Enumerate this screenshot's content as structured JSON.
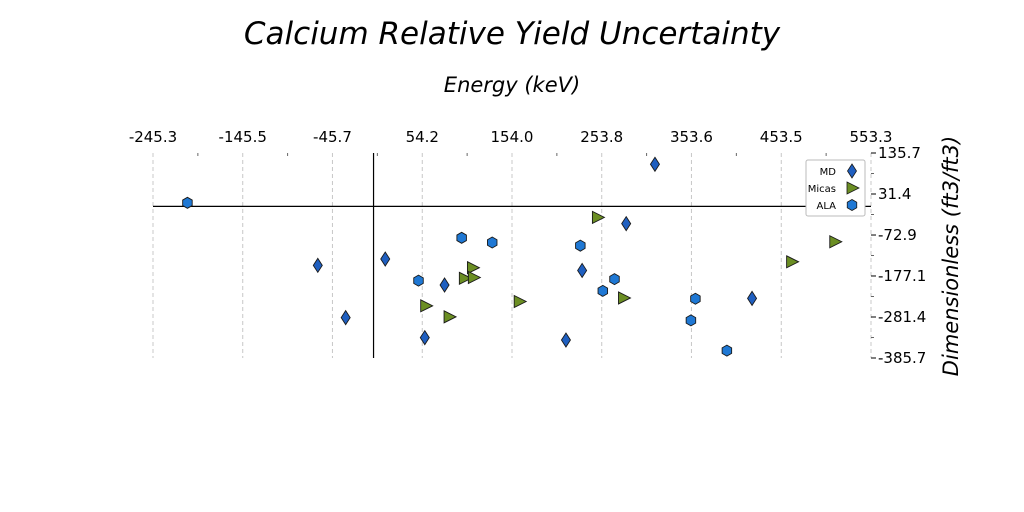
{
  "chart_data": {
    "type": "scatter",
    "title": "Calcium Relative Yield Uncertainty",
    "xlabel": "Energy (keV)",
    "ylabel": "Dimensionless (ft3/ft3)",
    "xlim": [
      -245.3,
      553.3
    ],
    "ylim": [
      -385.7,
      135.7
    ],
    "x_ticks": [
      "-245.3",
      "-145.5",
      "-45.7",
      "54.2",
      "154.0",
      "253.8",
      "353.6",
      "453.5",
      "553.3"
    ],
    "x_tick_values": [
      -245.3,
      -145.5,
      -45.7,
      54.2,
      154.0,
      253.8,
      353.6,
      453.5,
      553.3
    ],
    "y_ticks": [
      "135.7",
      "31.4",
      "-72.9",
      "-177.1",
      "-281.4",
      "-385.7"
    ],
    "y_tick_values": [
      135.7,
      31.4,
      -72.9,
      -177.1,
      -281.4,
      -385.7
    ],
    "x_axis_position": "top",
    "y_axis_position": "right",
    "grid": "vertical dashed",
    "zero_lines": true,
    "legend_position": "top-right",
    "series": [
      {
        "name": "MD",
        "marker": "diamond",
        "color": "#1f5fc0",
        "points": [
          {
            "x": 313,
            "y": 107
          },
          {
            "x": 281,
            "y": -44
          },
          {
            "x": -62,
            "y": -150
          },
          {
            "x": 13,
            "y": -134
          },
          {
            "x": 79,
            "y": -200
          },
          {
            "x": 232,
            "y": -163
          },
          {
            "x": -31,
            "y": -283
          },
          {
            "x": 57,
            "y": -334
          },
          {
            "x": 214,
            "y": -340
          },
          {
            "x": 421,
            "y": -234
          }
        ]
      },
      {
        "name": "Micas",
        "marker": "triangle-right",
        "color": "#6b8e23",
        "points": [
          {
            "x": 249,
            "y": -28
          },
          {
            "x": 513,
            "y": -90
          },
          {
            "x": 465,
            "y": -141
          },
          {
            "x": 110,
            "y": -156
          },
          {
            "x": 101,
            "y": -183
          },
          {
            "x": 111,
            "y": -181
          },
          {
            "x": 58,
            "y": -253
          },
          {
            "x": 84,
            "y": -281
          },
          {
            "x": 162,
            "y": -242
          },
          {
            "x": 278,
            "y": -233
          }
        ]
      },
      {
        "name": "ALA",
        "marker": "hexagon",
        "color": "#1f78d4",
        "points": [
          {
            "x": -207,
            "y": 9
          },
          {
            "x": 98,
            "y": -80
          },
          {
            "x": 132,
            "y": -92
          },
          {
            "x": 230,
            "y": -100
          },
          {
            "x": 50,
            "y": -189
          },
          {
            "x": 268,
            "y": -185
          },
          {
            "x": 255,
            "y": -215
          },
          {
            "x": 358,
            "y": -235
          },
          {
            "x": 353,
            "y": -290
          },
          {
            "x": 393,
            "y": -367
          }
        ]
      }
    ]
  }
}
